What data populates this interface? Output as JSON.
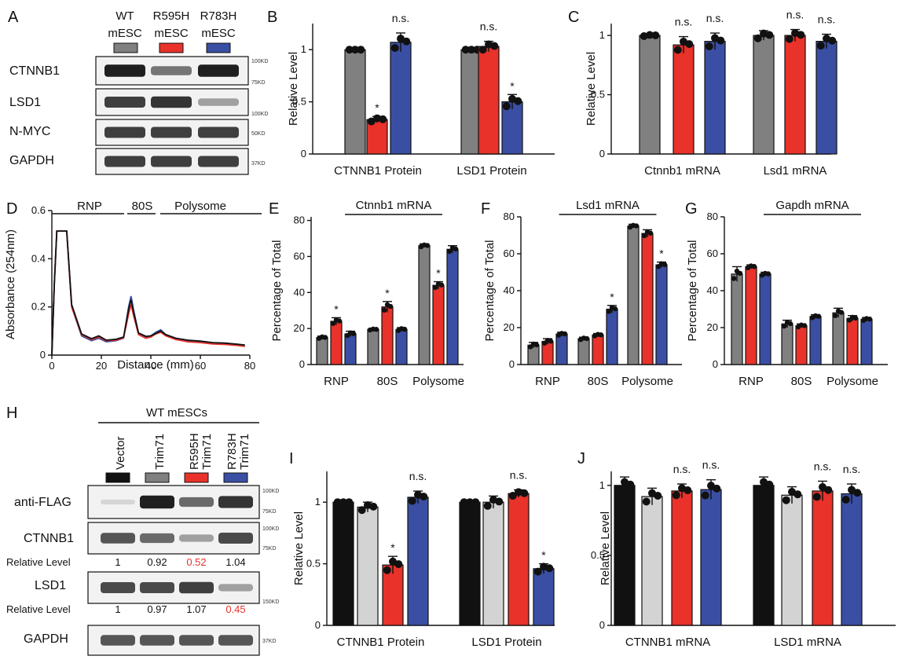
{
  "colors": {
    "wt": "#808080",
    "r595h": "#e8322a",
    "r783h": "#3a4fa3",
    "vector": "#111111",
    "trim71": "#d3d3d3"
  },
  "panel_a": {
    "letter": "A",
    "columns": [
      {
        "line1": "WT",
        "line2": "mESC"
      },
      {
        "line1": "R595H",
        "line2": "mESC"
      },
      {
        "line1": "R783H",
        "line2": "mESC"
      }
    ],
    "rows": [
      {
        "label": "CTNNB1",
        "mw": [
          "100KD",
          "75KD"
        ],
        "intensity": [
          0.95,
          0.55,
          0.95
        ]
      },
      {
        "label": "LSD1",
        "mw": [
          "100KD"
        ],
        "intensity": [
          0.8,
          0.85,
          0.35
        ]
      },
      {
        "label": "N-MYC",
        "mw": [
          "50KD"
        ],
        "intensity": [
          0.8,
          0.8,
          0.8
        ]
      },
      {
        "label": "GAPDH",
        "mw": [
          "37KD"
        ],
        "intensity": [
          0.8,
          0.8,
          0.8
        ]
      }
    ]
  },
  "panel_h": {
    "letter": "H",
    "header": "WT mESCs",
    "columns": [
      {
        "line1": "Vector",
        "line2": ""
      },
      {
        "line1": "Trim71",
        "line2": ""
      },
      {
        "line1": "R595H",
        "line2": "Trim71"
      },
      {
        "line1": "R783H",
        "line2": "Trim71"
      }
    ],
    "rows": [
      {
        "label": "anti-FLAG",
        "mw": [
          "100KD",
          "75KD"
        ],
        "intensity": [
          0.1,
          0.95,
          0.6,
          0.85
        ]
      },
      {
        "label": "CTNNB1",
        "mw": [
          "100KD",
          "75KD"
        ],
        "intensity": [
          0.7,
          0.6,
          0.35,
          0.75
        ]
      },
      {
        "label": "LSD1",
        "mw": [
          "150KD"
        ],
        "intensity": [
          0.75,
          0.75,
          0.8,
          0.35
        ]
      },
      {
        "label": "GAPDH",
        "mw": [
          "37KD"
        ],
        "intensity": [
          0.7,
          0.7,
          0.7,
          0.7
        ]
      }
    ],
    "relative_rows": [
      {
        "label": "Relative Level",
        "values": [
          "1",
          "0.92",
          "0.52",
          "1.04"
        ],
        "highlight": [
          false,
          false,
          true,
          false
        ]
      },
      {
        "label": "Relative Level",
        "values": [
          "1",
          "0.97",
          "1.07",
          "0.45"
        ],
        "highlight": [
          false,
          false,
          false,
          true
        ]
      }
    ]
  },
  "panel_d": {
    "letter": "D",
    "regions": [
      "RNP",
      "80S",
      "Polysome"
    ],
    "chart_data": {
      "type": "line",
      "xlabel": "Distance (mm)",
      "ylabel": "Absorbance (254nm)",
      "xlim": [
        0,
        80
      ],
      "ylim": [
        0,
        0.6
      ],
      "xticks": [
        "0",
        "20",
        "40",
        "60",
        "80"
      ],
      "yticks": [
        "0",
        "0.2",
        "0.4",
        "0.6"
      ],
      "x": [
        0,
        1,
        2,
        3,
        6,
        8,
        12,
        16,
        19,
        22,
        26,
        29,
        31,
        32,
        33,
        35,
        38,
        40,
        42,
        44,
        46,
        50,
        55,
        60,
        65,
        70,
        75,
        78
      ],
      "series": [
        {
          "values": [
            0.0,
            0.3,
            0.515,
            0.515,
            0.515,
            0.2,
            0.08,
            0.06,
            0.07,
            0.055,
            0.06,
            0.07,
            0.2,
            0.245,
            0.19,
            0.09,
            0.075,
            0.08,
            0.095,
            0.105,
            0.085,
            0.07,
            0.06,
            0.055,
            0.05,
            0.048,
            0.042,
            0.04
          ]
        },
        {
          "values": [
            0.0,
            0.3,
            0.515,
            0.515,
            0.515,
            0.2,
            0.085,
            0.065,
            0.075,
            0.06,
            0.062,
            0.072,
            0.17,
            0.21,
            0.165,
            0.085,
            0.07,
            0.075,
            0.088,
            0.095,
            0.08,
            0.065,
            0.055,
            0.052,
            0.046,
            0.044,
            0.04,
            0.036
          ]
        },
        {
          "values": [
            0.0,
            0.3,
            0.515,
            0.515,
            0.515,
            0.21,
            0.088,
            0.068,
            0.08,
            0.062,
            0.066,
            0.075,
            0.19,
            0.23,
            0.18,
            0.092,
            0.078,
            0.08,
            0.09,
            0.1,
            0.085,
            0.07,
            0.062,
            0.058,
            0.052,
            0.05,
            0.045,
            0.042
          ]
        }
      ]
    }
  },
  "bar_panels": [
    {
      "letter": "B",
      "chart_data": {
        "type": "bar",
        "title": "",
        "ylabel": "Relative Level",
        "ylim": [
          0,
          1.25
        ],
        "yticks": [
          0,
          0.5,
          1
        ],
        "ytick_labels": [
          "0",
          "0.5",
          "1"
        ],
        "categories": [
          "CTNNB1 Protein",
          "LSD1 Protein"
        ],
        "series_colors": [
          "wt",
          "r595h",
          "r783h"
        ],
        "values": [
          [
            1.0,
            0.33,
            1.07
          ],
          [
            1.0,
            1.03,
            0.5
          ]
        ],
        "errors": [
          [
            0,
            0.03,
            0.09
          ],
          [
            0,
            0.05,
            0.07
          ]
        ],
        "annotations": [
          [
            "",
            "*",
            "n.s."
          ],
          [
            "",
            "n.s.",
            "*"
          ]
        ]
      }
    },
    {
      "letter": "C",
      "chart_data": {
        "type": "bar",
        "title": "",
        "ylabel": "Relative Level",
        "ylim": [
          0,
          1.1
        ],
        "yticks": [
          0,
          0.5,
          1
        ],
        "ytick_labels": [
          "0",
          "0.5",
          "1"
        ],
        "categories": [
          "Ctnnb1 mRNA",
          "Lsd1 mRNA"
        ],
        "series_colors": [
          "wt",
          "r595h",
          "r783h"
        ],
        "values": [
          [
            1.0,
            0.92,
            0.95
          ],
          [
            1.0,
            1.0,
            0.95
          ]
        ],
        "errors": [
          [
            0.01,
            0.07,
            0.07
          ],
          [
            0.04,
            0.05,
            0.06
          ]
        ],
        "annotations": [
          [
            "",
            "n.s.",
            "n.s."
          ],
          [
            "",
            "n.s.",
            "n.s."
          ]
        ]
      }
    },
    {
      "letter": "E",
      "chart_data": {
        "type": "bar",
        "title": "Ctnnb1 mRNA",
        "ylabel": "Percentage of Total",
        "ylim": [
          0,
          82
        ],
        "yticks": [
          0,
          20,
          40,
          60,
          80
        ],
        "ytick_labels": [
          "0",
          "20",
          "40",
          "60",
          "80"
        ],
        "categories": [
          "RNP",
          "80S",
          "Polysome"
        ],
        "series_colors": [
          "wt",
          "r595h",
          "r783h"
        ],
        "values": [
          [
            15,
            24,
            17
          ],
          [
            19.5,
            32,
            19.5
          ],
          [
            66,
            44,
            64
          ]
        ],
        "errors": [
          [
            0.8,
            2,
            1.5
          ],
          [
            0.5,
            3,
            1
          ],
          [
            1,
            2,
            2
          ]
        ],
        "annotations": [
          [
            "",
            "*",
            ""
          ],
          [
            "",
            "*",
            ""
          ],
          [
            "",
            "*",
            ""
          ]
        ]
      }
    },
    {
      "letter": "F",
      "chart_data": {
        "type": "bar",
        "title": "Lsd1 mRNA",
        "ylabel": "Percentage of Total",
        "ylim": [
          0,
          80
        ],
        "yticks": [
          0,
          20,
          40,
          60,
          80
        ],
        "ytick_labels": [
          "0",
          "20",
          "40",
          "60",
          "80"
        ],
        "categories": [
          "RNP",
          "80S",
          "Polysome"
        ],
        "series_colors": [
          "wt",
          "r595h",
          "r783h"
        ],
        "values": [
          [
            10.5,
            12.5,
            16.5
          ],
          [
            14,
            16,
            30
          ],
          [
            75,
            71,
            54
          ]
        ],
        "errors": [
          [
            1.5,
            1.5,
            1
          ],
          [
            0.8,
            0.8,
            2
          ],
          [
            1,
            2,
            1.5
          ]
        ],
        "annotations": [
          [
            "",
            "",
            ""
          ],
          [
            "",
            "",
            "*"
          ],
          [
            "",
            "",
            "*"
          ]
        ]
      }
    },
    {
      "letter": "G",
      "chart_data": {
        "type": "bar",
        "title": "Gapdh mRNA",
        "ylabel": "Percentage of Total",
        "ylim": [
          0,
          80
        ],
        "yticks": [
          0,
          20,
          40,
          60,
          80
        ],
        "ytick_labels": [
          "0",
          "20",
          "40",
          "60",
          "80"
        ],
        "categories": [
          "RNP",
          "80S",
          "Polysome"
        ],
        "series_colors": [
          "wt",
          "r595h",
          "r783h"
        ],
        "values": [
          [
            49,
            53,
            49
          ],
          [
            22,
            21,
            26
          ],
          [
            28,
            25,
            24.5
          ]
        ],
        "errors": [
          [
            4,
            1,
            1
          ],
          [
            2,
            1,
            1
          ],
          [
            2.5,
            1.5,
            1
          ]
        ],
        "annotations": [
          [
            "",
            "",
            ""
          ],
          [
            "",
            "",
            ""
          ],
          [
            "",
            "",
            ""
          ]
        ]
      }
    },
    {
      "letter": "I",
      "chart_data": {
        "type": "bar",
        "title": "",
        "ylabel": "Relative Level",
        "ylim": [
          0,
          1.25
        ],
        "yticks": [
          0,
          0.5,
          1
        ],
        "ytick_labels": [
          "0",
          "0.5",
          "1"
        ],
        "categories": [
          "CTNNB1 Protein",
          "LSD1 Protein"
        ],
        "series_colors": [
          "vector",
          "trim71",
          "r595h",
          "r783h"
        ],
        "values": [
          [
            1.0,
            0.96,
            0.49,
            1.04
          ],
          [
            1.0,
            1.0,
            1.07,
            0.46
          ]
        ],
        "errors": [
          [
            0,
            0.04,
            0.07,
            0.05
          ],
          [
            0,
            0.05,
            0.03,
            0.04
          ]
        ],
        "annotations": [
          [
            "",
            "",
            "*",
            "n.s."
          ],
          [
            "",
            "",
            "n.s.",
            "*"
          ]
        ]
      }
    },
    {
      "letter": "J",
      "chart_data": {
        "type": "bar",
        "title": "",
        "ylabel": "Relative Level",
        "ylim": [
          0,
          1.1
        ],
        "yticks": [
          0,
          0.5,
          1
        ],
        "ytick_labels": [
          "0",
          "0.5",
          "1"
        ],
        "categories": [
          "CTNNB1 mRNA",
          "LSD1 mRNA"
        ],
        "series_colors": [
          "vector",
          "trim71",
          "r595h",
          "r783h"
        ],
        "values": [
          [
            1.0,
            0.92,
            0.96,
            0.97
          ],
          [
            1.0,
            0.93,
            0.96,
            0.94
          ]
        ],
        "errors": [
          [
            0.06,
            0.06,
            0.05,
            0.07
          ],
          [
            0.06,
            0.06,
            0.07,
            0.07
          ]
        ],
        "annotations": [
          [
            "",
            "",
            "n.s.",
            "n.s."
          ],
          [
            "",
            "",
            "n.s.",
            "n.s."
          ]
        ]
      }
    }
  ]
}
